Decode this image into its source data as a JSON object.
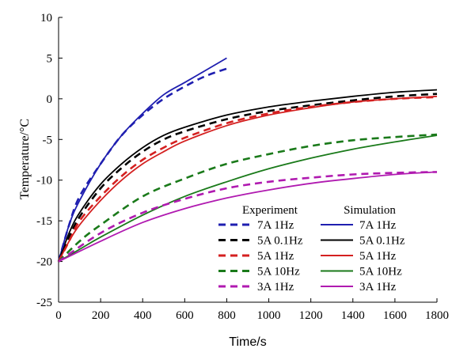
{
  "chart_data": {
    "type": "line",
    "title": "",
    "xlabel": "Time/s",
    "ylabel": "Temperature/°C",
    "xlim": [
      0,
      1800
    ],
    "ylim": [
      -25,
      10
    ],
    "xticks": [
      0,
      200,
      400,
      600,
      800,
      1000,
      1200,
      1400,
      1600,
      1800
    ],
    "yticks": [
      -25,
      -20,
      -15,
      -10,
      -5,
      0,
      5,
      10
    ],
    "grid": false,
    "legend": {
      "placement": "lower-right",
      "experiment_title": "Experiment",
      "simulation_title": "Simulation"
    },
    "series": [
      {
        "name": "7A 1Hz",
        "group": "Experiment",
        "color": "#1f1fb0",
        "dash": true,
        "x": [
          0,
          50,
          100,
          200,
          300,
          400,
          500,
          600,
          700,
          800
        ],
        "y": [
          -20,
          -15.5,
          -12,
          -8,
          -4.5,
          -2,
          0,
          1.5,
          2.8,
          3.7
        ]
      },
      {
        "name": "5A 0.1Hz",
        "group": "Experiment",
        "color": "#000000",
        "dash": true,
        "x": [
          0,
          50,
          100,
          200,
          300,
          400,
          500,
          600,
          800,
          1000,
          1200,
          1400,
          1600,
          1800
        ],
        "y": [
          -20,
          -17,
          -14.5,
          -11,
          -8.5,
          -6.5,
          -5,
          -4,
          -2.5,
          -1.5,
          -0.8,
          -0.2,
          0.3,
          0.6
        ]
      },
      {
        "name": "5A 1Hz",
        "group": "Experiment",
        "color": "#d42020",
        "dash": true,
        "x": [
          0,
          50,
          100,
          200,
          300,
          400,
          500,
          600,
          800,
          1000,
          1200,
          1400,
          1600,
          1800
        ],
        "y": [
          -20,
          -17.5,
          -15,
          -12,
          -9.5,
          -7.5,
          -6,
          -4.8,
          -3,
          -1.8,
          -1,
          -0.4,
          0,
          0.2
        ]
      },
      {
        "name": "5A 10Hz",
        "group": "Experiment",
        "color": "#1a7a1a",
        "dash": true,
        "x": [
          0,
          100,
          200,
          400,
          600,
          800,
          1000,
          1200,
          1400,
          1600,
          1800
        ],
        "y": [
          -20,
          -17.5,
          -15.5,
          -12,
          -9.8,
          -8,
          -6.8,
          -5.8,
          -5.1,
          -4.7,
          -4.4
        ]
      },
      {
        "name": "3A 1Hz",
        "group": "Experiment",
        "color": "#b01ab0",
        "dash": true,
        "x": [
          0,
          200,
          400,
          600,
          800,
          1000,
          1200,
          1400,
          1600,
          1800
        ],
        "y": [
          -20,
          -16.5,
          -14,
          -12.3,
          -11,
          -10.2,
          -9.7,
          -9.3,
          -9.1,
          -9
        ]
      },
      {
        "name": "7A 1Hz",
        "group": "Simulation",
        "color": "#1f1fb0",
        "dash": false,
        "x": [
          0,
          50,
          100,
          200,
          300,
          400,
          500,
          600,
          700,
          800
        ],
        "y": [
          -20,
          -15.5,
          -12.5,
          -8,
          -4.5,
          -1.8,
          0.5,
          2,
          3.5,
          5
        ]
      },
      {
        "name": "5A 0.1Hz",
        "group": "Simulation",
        "color": "#000000",
        "dash": false,
        "x": [
          0,
          50,
          100,
          200,
          300,
          400,
          500,
          600,
          800,
          1000,
          1200,
          1400,
          1600,
          1800
        ],
        "y": [
          -20,
          -16.5,
          -14,
          -10.5,
          -8,
          -6,
          -4.5,
          -3.5,
          -2,
          -1,
          -0.3,
          0.3,
          0.8,
          1.1
        ]
      },
      {
        "name": "5A 1Hz",
        "group": "Simulation",
        "color": "#d42020",
        "dash": false,
        "x": [
          0,
          50,
          100,
          200,
          300,
          400,
          500,
          600,
          800,
          1000,
          1200,
          1400,
          1600,
          1800
        ],
        "y": [
          -20,
          -17.5,
          -15.5,
          -12.5,
          -10,
          -8,
          -6.5,
          -5.2,
          -3.3,
          -2,
          -1.1,
          -0.4,
          0,
          0.3
        ]
      },
      {
        "name": "5A 10Hz",
        "group": "Simulation",
        "color": "#1a7a1a",
        "dash": false,
        "x": [
          0,
          100,
          200,
          400,
          600,
          800,
          1000,
          1200,
          1400,
          1600,
          1800
        ],
        "y": [
          -20,
          -18.5,
          -17,
          -14.3,
          -12,
          -10.2,
          -8.6,
          -7.3,
          -6.2,
          -5.3,
          -4.5
        ]
      },
      {
        "name": "3A 1Hz",
        "group": "Simulation",
        "color": "#b01ab0",
        "dash": false,
        "x": [
          0,
          200,
          400,
          600,
          800,
          1000,
          1200,
          1400,
          1600,
          1800
        ],
        "y": [
          -20,
          -17.5,
          -15.2,
          -13.5,
          -12.2,
          -11.2,
          -10.4,
          -9.8,
          -9.3,
          -9
        ]
      }
    ]
  }
}
